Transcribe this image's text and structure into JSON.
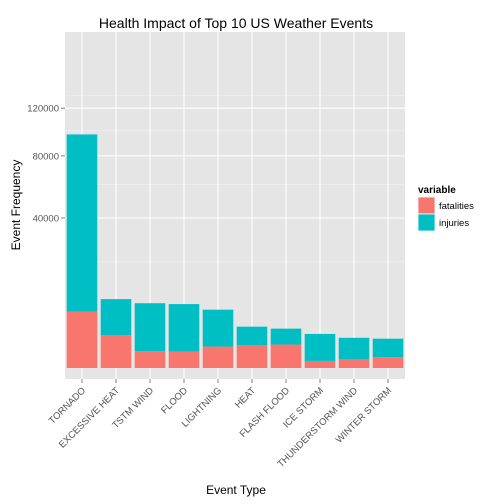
{
  "chart_data": {
    "type": "bar",
    "stacked": true,
    "title": "Health Impact of Top 10 US Weather Events",
    "xlabel": "Event Type",
    "ylabel": "Event Frequency",
    "categories": [
      "TORNADO",
      "EXCESSIVE HEAT",
      "TSTM WIND",
      "FLOOD",
      "LIGHTNING",
      "HEAT",
      "FLASH FLOOD",
      "ICE STORM",
      "THUNDERSTORM WIND",
      "WINTER STORM"
    ],
    "series": [
      {
        "name": "fatalities",
        "values": [
          5633,
          1903,
          504,
          470,
          816,
          937,
          978,
          89,
          133,
          206
        ],
        "color": "#F8766D"
      },
      {
        "name": "injuries",
        "values": [
          91346,
          6525,
          6957,
          6789,
          5230,
          2100,
          1777,
          1975,
          1488,
          1321
        ],
        "color": "#00BFC4"
      }
    ],
    "y_scale": "sqrt",
    "ylim": [
      0,
      144000
    ],
    "y_ticks": [
      40000,
      80000,
      120000
    ],
    "y_tick_labels": [
      "40000",
      "80000",
      "120000"
    ],
    "grid": true,
    "legend": {
      "title": "variable",
      "position": "right",
      "entries": [
        "fatalities",
        "injuries"
      ]
    }
  },
  "colors": {
    "panel": "#E5E5E5",
    "grid_major": "#FFFFFF",
    "grid_minor": "#F2F2F2"
  }
}
